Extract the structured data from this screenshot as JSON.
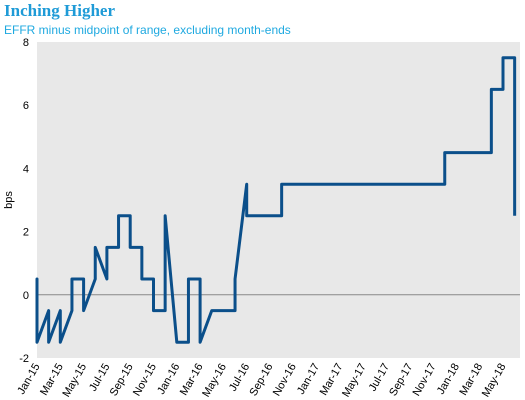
{
  "chart_data": {
    "type": "line",
    "title": "Inching Higher",
    "subtitle": "EFFR minus midpoint of range, excluding month-ends",
    "y_label": "bps",
    "ylim": [
      -2,
      8
    ],
    "yticks": [
      -2,
      0,
      2,
      4,
      6,
      8
    ],
    "xticks": [
      "Jan-15",
      "Mar-15",
      "May-15",
      "Jul-15",
      "Sep-15",
      "Nov-15",
      "Jan-16",
      "Mar-16",
      "May-16",
      "Jul-16",
      "Sep-16",
      "Nov-16",
      "Jan-17",
      "Mar-17",
      "May-17",
      "Jul-17",
      "Sep-17",
      "Nov-17",
      "Jan-18",
      "Mar-18",
      "May-18"
    ],
    "series": [
      {
        "color": "#0b4f8a",
        "x": [
          "Jan-15",
          "Jan-15",
          "Jan-15",
          "Feb-15",
          "Feb-15",
          "Mar-15",
          "Mar-15",
          "Apr-15",
          "Apr-15",
          "May-15",
          "May-15",
          "Jun-15",
          "Jun-15",
          "Jul-15",
          "Jul-15",
          "Aug-15",
          "Aug-15",
          "Sep-15",
          "Sep-15",
          "Oct-15",
          "Oct-15",
          "Nov-15",
          "Nov-15",
          "Dec-15",
          "Dec-15",
          "Dec-15",
          "Jan-16",
          "Feb-16",
          "Feb-16",
          "Mar-16",
          "Mar-16",
          "Apr-16",
          "Jun-16",
          "Jun-16",
          "Jul-16",
          "Jul-16",
          "Oct-16",
          "Oct-16",
          "Dec-17",
          "Dec-17",
          "Apr-18",
          "Apr-18",
          "Apr-18",
          "May-18",
          "May-18",
          "Jun-18",
          "Jun-18"
        ],
        "values": [
          -0.5,
          0.5,
          -1.5,
          -0.5,
          -1.5,
          -0.5,
          -1.5,
          -0.5,
          0.5,
          0.5,
          -0.5,
          0.5,
          1.5,
          0.5,
          1.5,
          1.5,
          2.5,
          2.5,
          1.5,
          1.5,
          0.5,
          0.5,
          -0.5,
          -0.5,
          0.5,
          2.5,
          -1.5,
          -1.5,
          0.5,
          0.5,
          -1.5,
          -0.5,
          -0.5,
          0.5,
          3.5,
          2.5,
          2.5,
          3.5,
          3.5,
          4.5,
          4.5,
          5.5,
          6.5,
          6.5,
          7.5,
          7.5,
          2.5
        ]
      }
    ]
  }
}
